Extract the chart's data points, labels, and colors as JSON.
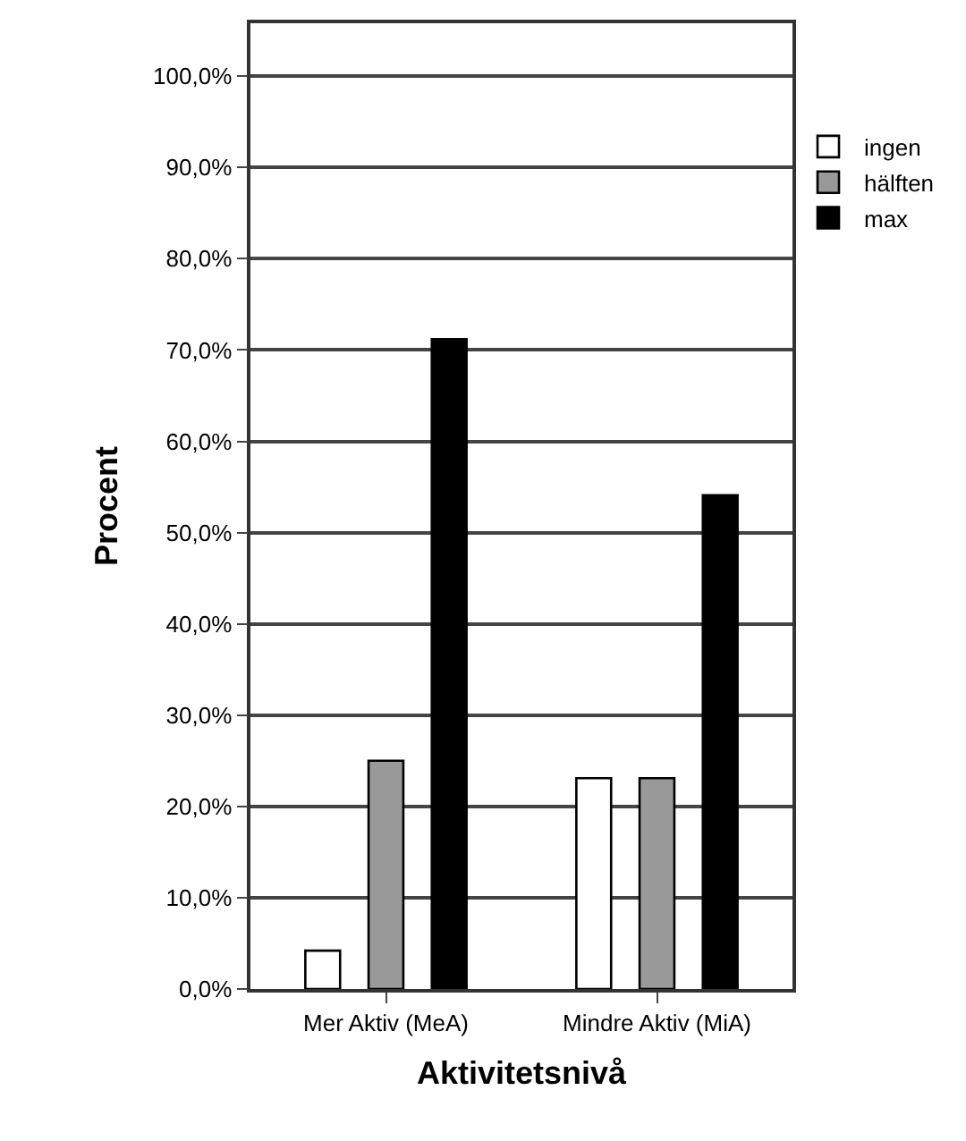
{
  "chart_data": {
    "type": "bar",
    "xlabel": "Aktivitetsnivå",
    "ylabel": "Procent",
    "categories": [
      "Mer Aktiv (MeA)",
      "Mindre Aktiv (MiA)"
    ],
    "series": [
      {
        "name": "ingen",
        "color": "#ffffff",
        "values": [
          4.2,
          23.1
        ]
      },
      {
        "name": "hälften",
        "color": "#999999",
        "values": [
          25.0,
          23.1
        ]
      },
      {
        "name": "max",
        "color": "#000000",
        "values": [
          71.2,
          54.1
        ]
      }
    ],
    "ylim": [
      0,
      105.8
    ],
    "yticks": [
      {
        "value": 0,
        "label": "0,0%"
      },
      {
        "value": 10,
        "label": "10,0%"
      },
      {
        "value": 20,
        "label": "20,0%"
      },
      {
        "value": 30,
        "label": "30,0%"
      },
      {
        "value": 40,
        "label": "40,0%"
      },
      {
        "value": 50,
        "label": "50,0%"
      },
      {
        "value": 60,
        "label": "60,0%"
      },
      {
        "value": 70,
        "label": "70,0%"
      },
      {
        "value": 80,
        "label": "80,0%"
      },
      {
        "value": 90,
        "label": "90,0%"
      },
      {
        "value": 100,
        "label": "100,0%"
      }
    ],
    "grid": "y",
    "legend": "right"
  }
}
